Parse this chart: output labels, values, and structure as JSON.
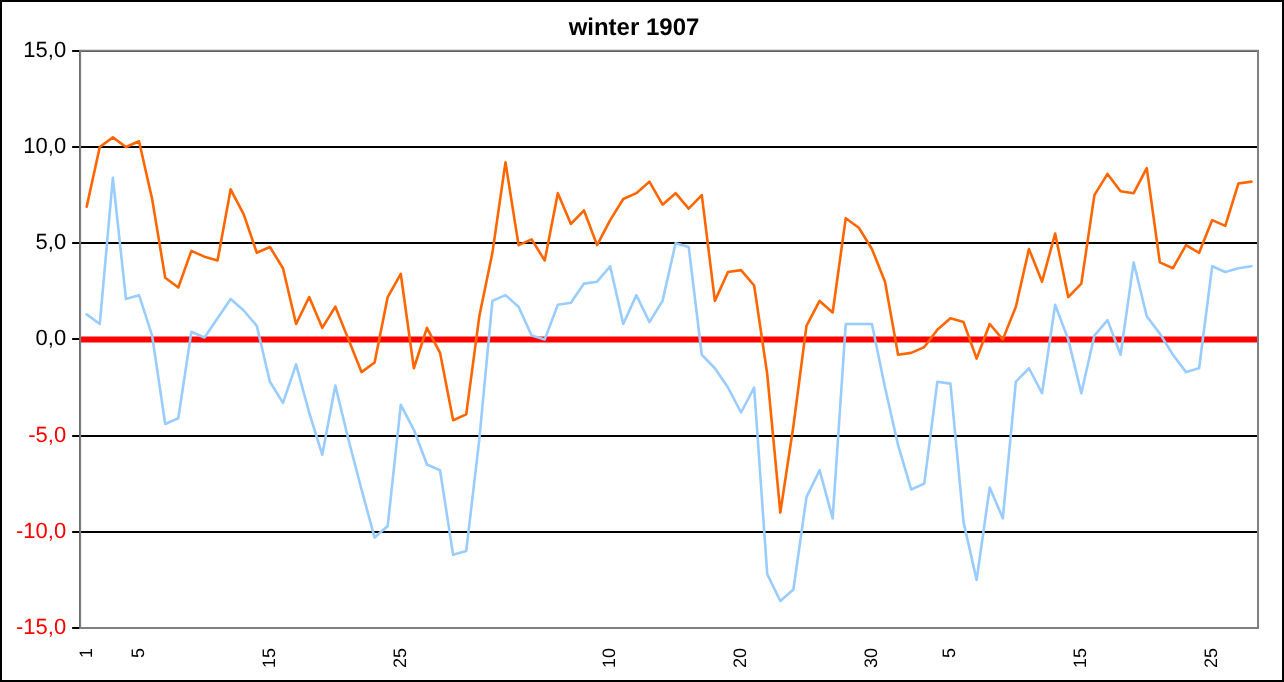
{
  "chart_data": {
    "type": "line",
    "title": "winter 1907",
    "categories": [
      "1",
      null,
      null,
      null,
      "5",
      null,
      null,
      null,
      null,
      null,
      null,
      null,
      null,
      null,
      "15",
      null,
      null,
      null,
      null,
      null,
      null,
      null,
      null,
      null,
      "25",
      null,
      null,
      null,
      null,
      null,
      null,
      null,
      null,
      null,
      null,
      null,
      null,
      null,
      null,
      null,
      "10",
      null,
      null,
      null,
      null,
      null,
      null,
      null,
      null,
      null,
      "20",
      null,
      null,
      null,
      null,
      null,
      null,
      null,
      null,
      null,
      "30",
      null,
      null,
      null,
      null,
      null,
      "5",
      null,
      null,
      null,
      null,
      null,
      null,
      null,
      null,
      null,
      "15",
      null,
      null,
      null,
      null,
      null,
      null,
      null,
      null,
      null,
      "25",
      null,
      null,
      null
    ],
    "series": [
      {
        "color": "#ff6600",
        "values": [
          6.9,
          10.0,
          10.5,
          10.0,
          10.3,
          7.3,
          3.2,
          2.7,
          4.6,
          4.3,
          4.1,
          7.8,
          6.5,
          4.5,
          4.8,
          3.7,
          0.8,
          2.2,
          0.6,
          1.7,
          0.0,
          -1.7,
          -1.2,
          2.2,
          3.4,
          -1.5,
          0.6,
          -0.7,
          -4.2,
          -3.9,
          1.2,
          4.5,
          9.2,
          4.9,
          5.2,
          4.1,
          7.6,
          6.0,
          6.7,
          4.9,
          6.2,
          7.3,
          7.6,
          8.2,
          7.0,
          7.6,
          6.8,
          7.5,
          2.0,
          3.5,
          3.6,
          2.8,
          -1.8,
          -9.0,
          -4.5,
          0.7,
          2.0,
          1.4,
          6.3,
          5.8,
          4.7,
          3.0,
          -0.8,
          -0.7,
          -0.4,
          0.5,
          1.1,
          0.9,
          -1.0,
          0.8,
          0.0,
          1.7,
          4.7,
          3.0,
          5.5,
          2.2,
          2.9,
          7.5,
          8.6,
          7.7,
          7.6,
          8.9,
          4.0,
          3.7,
          4.9,
          4.5,
          6.2,
          5.9,
          8.1,
          8.2
        ]
      },
      {
        "color": "#99ccff",
        "values": [
          1.3,
          0.8,
          8.4,
          2.1,
          2.3,
          0.2,
          -4.4,
          -4.1,
          0.4,
          0.1,
          1.1,
          2.1,
          1.5,
          0.7,
          -2.2,
          -3.3,
          -1.3,
          -3.8,
          -6.0,
          -2.4,
          -5.2,
          -7.8,
          -10.3,
          -9.7,
          -3.4,
          -4.7,
          -6.5,
          -6.8,
          -11.2,
          -11.0,
          -5.2,
          2.0,
          2.3,
          1.7,
          0.2,
          0.0,
          1.8,
          1.9,
          2.9,
          3.0,
          3.8,
          0.8,
          2.3,
          0.9,
          2.0,
          5.0,
          4.8,
          -0.8,
          -1.5,
          -2.5,
          -3.8,
          -2.5,
          -12.2,
          -13.6,
          -13.0,
          -8.2,
          -6.8,
          -9.3,
          0.8,
          0.8,
          0.8,
          -2.5,
          -5.5,
          -7.8,
          -7.5,
          -2.2,
          -2.3,
          -9.5,
          -12.5,
          -7.7,
          -9.3,
          -2.2,
          -1.5,
          -2.8,
          1.8,
          0.0,
          -2.8,
          0.2,
          1.0,
          -0.8,
          4.0,
          1.2,
          0.3,
          -0.8,
          -1.7,
          -1.5,
          3.8,
          3.5,
          3.7,
          3.8
        ]
      }
    ],
    "ylim": [
      -15,
      15
    ],
    "yticks": [
      {
        "value": -15,
        "label": "-15,0"
      },
      {
        "value": -10,
        "label": "-10,0"
      },
      {
        "value": -5,
        "label": "-5,0"
      },
      {
        "value": 0,
        "label": "0,0"
      },
      {
        "value": 5,
        "label": "5,0"
      },
      {
        "value": 10,
        "label": "10,0"
      },
      {
        "value": 15,
        "label": "15,0"
      }
    ],
    "grid": "y",
    "legend": false,
    "marker": "none",
    "line_style": "solid",
    "ref_lines": [
      {
        "axis": "y",
        "value": 0,
        "color": "#ff0000"
      }
    ]
  }
}
